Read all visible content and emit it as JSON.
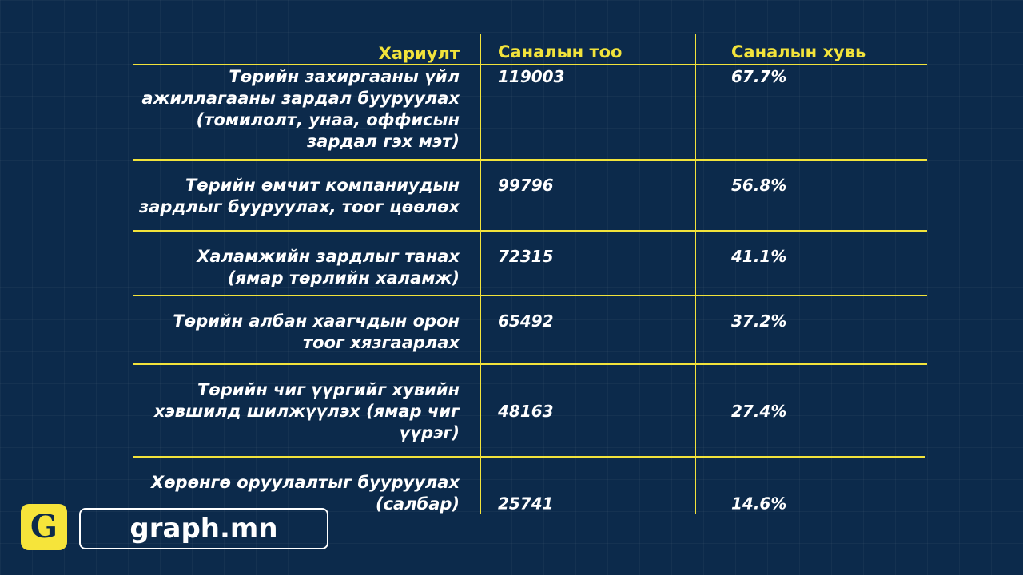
{
  "chart_data": {
    "type": "table",
    "columns": [
      "Хариулт",
      "Саналын тоо",
      "Саналын хувь"
    ],
    "rows": [
      {
        "answer_lines": [
          "Төрийн захиргааны үйл",
          "ажиллагааны зардал бууруулах",
          "(томилолт, унаа, оффисын",
          "зардал гэх мэт)"
        ],
        "votes": 119003,
        "votes_text": "119003",
        "percent": 67.7,
        "percent_text": "67.7%"
      },
      {
        "answer_lines": [
          "Төрийн өмчит компаниудын",
          "зардлыг бууруулах, тоог цөөлөх"
        ],
        "votes": 99796,
        "votes_text": "99796",
        "percent": 56.8,
        "percent_text": "56.8%"
      },
      {
        "answer_lines": [
          "Халамжийн зардлыг танах",
          "(ямар төрлийн халамж)"
        ],
        "votes": 72315,
        "votes_text": "72315",
        "percent": 41.1,
        "percent_text": "41.1%"
      },
      {
        "answer_lines": [
          "Төрийн албан хаагчдын орон",
          "тоог хязгаарлах"
        ],
        "votes": 65492,
        "votes_text": "65492",
        "percent": 37.2,
        "percent_text": "37.2%"
      },
      {
        "answer_lines": [
          "Төрийн чиг үүргийг хувийн",
          "хэвшилд шилжүүлэх (ямар чиг",
          "үүрэг)"
        ],
        "votes": 48163,
        "votes_text": "48163",
        "percent": 27.4,
        "percent_text": "27.4%"
      },
      {
        "answer_lines": [
          "Хөрөнгө оруулалтыг бууруулах",
          "(салбар)"
        ],
        "votes": 25741,
        "votes_text": "25741",
        "percent": 14.6,
        "percent_text": "14.6%"
      }
    ]
  },
  "colors": {
    "background": "#0c2a4b",
    "accent_yellow": "#f2e33b",
    "text_white": "#ffffff"
  },
  "brand": {
    "logo_letter": "G",
    "site": "graph.mn"
  }
}
